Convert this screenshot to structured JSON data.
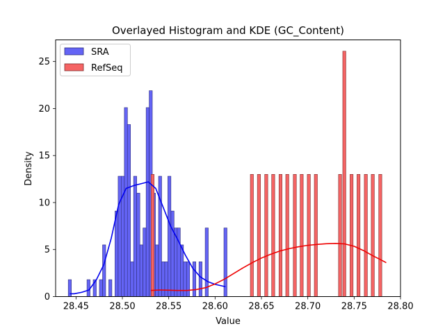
{
  "chart_data": {
    "type": "histogram+kde",
    "title": "Overlayed Histogram and KDE (GC_Content)",
    "xlabel": "Value",
    "ylabel": "Density",
    "xlim": [
      28.428,
      28.8
    ],
    "ylim": [
      0,
      27.3
    ],
    "xticks": [
      28.45,
      28.5,
      28.55,
      28.6,
      28.65,
      28.7,
      28.75,
      28.8
    ],
    "xtick_labels": [
      "28.45",
      "28.50",
      "28.55",
      "28.60",
      "28.65",
      "28.70",
      "28.75",
      "28.80"
    ],
    "yticks": [
      0,
      5,
      10,
      15,
      20,
      25
    ],
    "ytick_labels": [
      "0",
      "5",
      "10",
      "15",
      "20",
      "25"
    ],
    "legend": {
      "placement": "top-left"
    },
    "series": [
      {
        "name": "SRA",
        "face_color": "#6464f5",
        "edge_color": "#2e2e7a",
        "line_color": "#0000ee",
        "bin_width": 0.00335,
        "bins": [
          [
            28.4433,
            1.8
          ],
          [
            28.4635,
            1.8
          ],
          [
            28.4702,
            1.8
          ],
          [
            28.4769,
            1.8
          ],
          [
            28.4803,
            5.5
          ],
          [
            28.487,
            1.8
          ],
          [
            28.4937,
            9.1
          ],
          [
            28.4971,
            12.8
          ],
          [
            28.5004,
            12.8
          ],
          [
            28.5038,
            20.1
          ],
          [
            28.5071,
            18.3
          ],
          [
            28.5105,
            3.7
          ],
          [
            28.5138,
            12.8
          ],
          [
            28.5172,
            11.0
          ],
          [
            28.5205,
            5.5
          ],
          [
            28.5239,
            7.3
          ],
          [
            28.5273,
            20.1
          ],
          [
            28.5306,
            21.9
          ],
          [
            28.534,
            11.0
          ],
          [
            28.5373,
            5.5
          ],
          [
            28.5407,
            12.8
          ],
          [
            28.544,
            3.7
          ],
          [
            28.5474,
            3.7
          ],
          [
            28.5507,
            12.8
          ],
          [
            28.5541,
            9.1
          ],
          [
            28.5575,
            7.3
          ],
          [
            28.5608,
            7.3
          ],
          [
            28.5642,
            5.5
          ],
          [
            28.5675,
            3.7
          ],
          [
            28.5709,
            3.7
          ],
          [
            28.5776,
            3.7
          ],
          [
            28.5843,
            3.7
          ],
          [
            28.591,
            7.3
          ],
          [
            28.6112,
            7.3
          ]
        ],
        "kde": [
          [
            28.4433,
            0.3
          ],
          [
            28.448,
            0.3
          ],
          [
            28.456,
            0.45
          ],
          [
            28.464,
            0.7
          ],
          [
            28.472,
            1.8
          ],
          [
            28.48,
            3.4
          ],
          [
            28.488,
            6.2
          ],
          [
            28.496,
            9.8
          ],
          [
            28.504,
            11.5
          ],
          [
            28.512,
            11.8
          ],
          [
            28.52,
            12.0
          ],
          [
            28.528,
            12.2
          ],
          [
            28.536,
            11.5
          ],
          [
            28.544,
            9.5
          ],
          [
            28.552,
            7.5
          ],
          [
            28.56,
            6.0
          ],
          [
            28.568,
            4.4
          ],
          [
            28.576,
            3.0
          ],
          [
            28.584,
            2.1
          ],
          [
            28.592,
            1.6
          ],
          [
            28.6,
            1.3
          ],
          [
            28.6112,
            1.05
          ]
        ]
      },
      {
        "name": "RefSeq",
        "face_color": "#f56464",
        "edge_color": "#7a2e2e",
        "line_color": "#ee0000",
        "bin_width": 0.00335,
        "bins": [
          [
            28.5326,
            13.0
          ],
          [
            28.6397,
            13.0
          ],
          [
            28.6473,
            13.0
          ],
          [
            28.6552,
            13.0
          ],
          [
            28.6627,
            13.0
          ],
          [
            28.6706,
            13.0
          ],
          [
            28.6779,
            13.0
          ],
          [
            28.686,
            13.0
          ],
          [
            28.6934,
            13.0
          ],
          [
            28.7011,
            13.0
          ],
          [
            28.7087,
            13.0
          ],
          [
            28.7348,
            13.0
          ],
          [
            28.7394,
            26.1
          ],
          [
            28.7472,
            13.0
          ],
          [
            28.7547,
            13.0
          ],
          [
            28.7626,
            13.0
          ],
          [
            28.7701,
            13.0
          ],
          [
            28.7782,
            13.0
          ]
        ],
        "kde": [
          [
            28.5306,
            0.65
          ],
          [
            28.54,
            0.7
          ],
          [
            28.55,
            0.68
          ],
          [
            28.56,
            0.65
          ],
          [
            28.57,
            0.65
          ],
          [
            28.58,
            0.75
          ],
          [
            28.59,
            0.95
          ],
          [
            28.6,
            1.35
          ],
          [
            28.61,
            1.85
          ],
          [
            28.62,
            2.45
          ],
          [
            28.63,
            3.05
          ],
          [
            28.64,
            3.6
          ],
          [
            28.65,
            4.1
          ],
          [
            28.66,
            4.5
          ],
          [
            28.67,
            4.85
          ],
          [
            28.68,
            5.1
          ],
          [
            28.69,
            5.3
          ],
          [
            28.7,
            5.45
          ],
          [
            28.71,
            5.55
          ],
          [
            28.72,
            5.62
          ],
          [
            28.73,
            5.65
          ],
          [
            28.74,
            5.6
          ],
          [
            28.75,
            5.35
          ],
          [
            28.76,
            4.9
          ],
          [
            28.77,
            4.35
          ],
          [
            28.78,
            3.85
          ],
          [
            28.7846,
            3.6
          ]
        ]
      }
    ]
  }
}
